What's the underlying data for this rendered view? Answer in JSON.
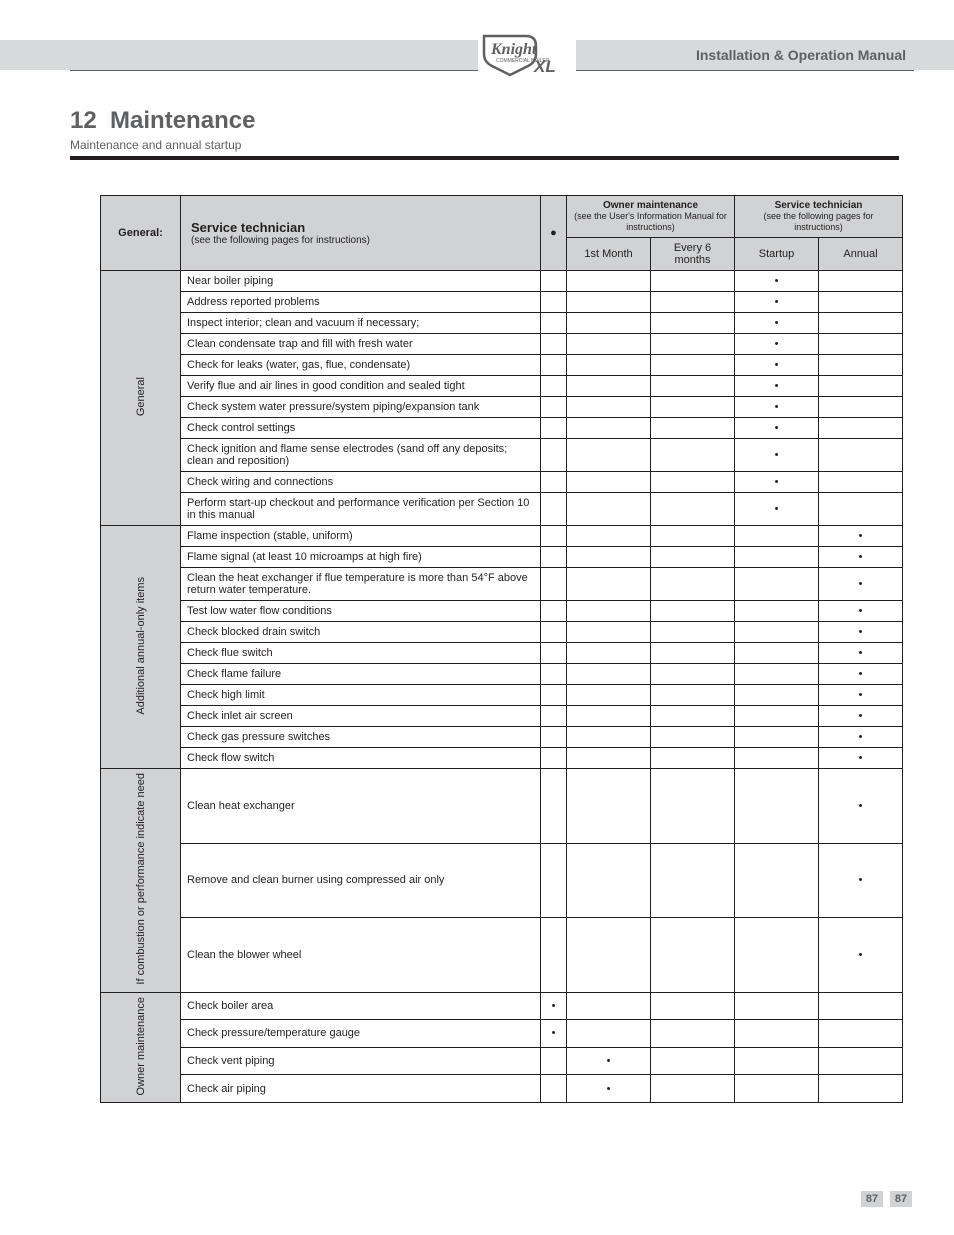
{
  "header": {
    "manual_title": "Installation & Operation Manual"
  },
  "section": {
    "number": "12",
    "title": "Maintenance",
    "subtitle": "Maintenance and annual startup"
  },
  "table": {
    "head": {
      "service_tech": "Service technician",
      "see_note": "(see the following pages for instructions)",
      "owner": "Owner maintenance",
      "see_om": "(see the  User's Information Manual for instructions)",
      "general": "General:",
      "dot_symbol": "●",
      "first_month": "1st Month",
      "every_6": "Every 6 months",
      "startup": "Startup",
      "annual": "Annual"
    },
    "groups": [
      {
        "label": "General",
        "rows": [
          {
            "proc": "Near boiler piping",
            "dot": "",
            "owner_a": "",
            "owner_b": "",
            "tech_a": "•",
            "tech_b": ""
          },
          {
            "proc": "Address reported problems",
            "dot": "",
            "owner_a": "",
            "owner_b": "",
            "tech_a": "•",
            "tech_b": ""
          },
          {
            "proc": "Inspect interior; clean and vacuum if necessary;",
            "dot": "",
            "owner_a": "",
            "owner_b": "",
            "tech_a": "•",
            "tech_b": ""
          },
          {
            "proc": "Clean condensate trap and fill with fresh water",
            "dot": "",
            "owner_a": "",
            "owner_b": "",
            "tech_a": "•",
            "tech_b": ""
          },
          {
            "proc": "Check for leaks (water, gas, flue, condensate)",
            "dot": "",
            "owner_a": "",
            "owner_b": "",
            "tech_a": "•",
            "tech_b": ""
          },
          {
            "proc": "Verify flue and air lines in good condition and sealed tight",
            "dot": "",
            "owner_a": "",
            "owner_b": "",
            "tech_a": "•",
            "tech_b": ""
          },
          {
            "proc": "Check system water pressure/system piping/expansion tank",
            "dot": "",
            "owner_a": "",
            "owner_b": "",
            "tech_a": "•",
            "tech_b": ""
          },
          {
            "proc": "Check control settings",
            "dot": "",
            "owner_a": "",
            "owner_b": "",
            "tech_a": "•",
            "tech_b": ""
          },
          {
            "proc": "Check ignition and flame sense electrodes (sand off any deposits; clean and reposition)",
            "dot": "",
            "owner_a": "",
            "owner_b": "",
            "tech_a": "•",
            "tech_b": ""
          },
          {
            "proc": "Check wiring and connections",
            "dot": "",
            "owner_a": "",
            "owner_b": "",
            "tech_a": "•",
            "tech_b": ""
          },
          {
            "proc": "Perform start-up checkout and performance verification per Section 10 in this manual",
            "dot": "",
            "owner_a": "",
            "owner_b": "",
            "tech_a": "•",
            "tech_b": ""
          }
        ]
      },
      {
        "label": "Additional annual-only items",
        "rows": [
          {
            "proc": "Flame inspection (stable, uniform)",
            "dot": "",
            "owner_a": "",
            "owner_b": "",
            "tech_a": "",
            "tech_b": "•"
          },
          {
            "proc": "Flame signal (at least 10 microamps at high fire)",
            "dot": "",
            "owner_a": "",
            "owner_b": "",
            "tech_a": "",
            "tech_b": "•"
          },
          {
            "proc": "Clean the heat exchanger if flue temperature is more than 54°F above return water temperature.",
            "dot": "",
            "owner_a": "",
            "owner_b": "",
            "tech_a": "",
            "tech_b": "•"
          },
          {
            "proc": "Test low water flow conditions",
            "dot": "",
            "owner_a": "",
            "owner_b": "",
            "tech_a": "",
            "tech_b": "•"
          },
          {
            "proc": "Check blocked drain switch",
            "dot": "",
            "owner_a": "",
            "owner_b": "",
            "tech_a": "",
            "tech_b": "•"
          },
          {
            "proc": "Check flue switch",
            "dot": "",
            "owner_a": "",
            "owner_b": "",
            "tech_a": "",
            "tech_b": "•"
          },
          {
            "proc": "Check flame failure",
            "dot": "",
            "owner_a": "",
            "owner_b": "",
            "tech_a": "",
            "tech_b": "•"
          },
          {
            "proc": "Check high limit",
            "dot": "",
            "owner_a": "",
            "owner_b": "",
            "tech_a": "",
            "tech_b": "•"
          },
          {
            "proc": "Check inlet air screen",
            "dot": "",
            "owner_a": "",
            "owner_b": "",
            "tech_a": "",
            "tech_b": "•"
          },
          {
            "proc": "Check gas pressure switches",
            "dot": "",
            "owner_a": "",
            "owner_b": "",
            "tech_a": "",
            "tech_b": "•"
          },
          {
            "proc": "Check flow switch",
            "dot": "",
            "owner_a": "",
            "owner_b": "",
            "tech_a": "",
            "tech_b": "•"
          }
        ]
      },
      {
        "label": "If combustion or performance indicate need",
        "rows": [
          {
            "proc": "Clean heat exchanger",
            "dot": "",
            "owner_a": "",
            "owner_b": "",
            "tech_a": "",
            "tech_b": "•"
          },
          {
            "proc": "Remove and clean burner using compressed air only",
            "dot": "",
            "owner_a": "",
            "owner_b": "",
            "tech_a": "",
            "tech_b": "•"
          },
          {
            "proc": "Clean the blower wheel",
            "dot": "",
            "owner_a": "",
            "owner_b": "",
            "tech_a": "",
            "tech_b": "•"
          }
        ]
      },
      {
        "label": "Owner maintenance",
        "rows": [
          {
            "proc": "Check boiler area",
            "dot": "•",
            "owner_a": "",
            "owner_b": "",
            "tech_a": "",
            "tech_b": ""
          },
          {
            "proc": "Check pressure/temperature gauge",
            "dot": "•",
            "owner_a": "",
            "owner_b": "",
            "tech_a": "",
            "tech_b": ""
          },
          {
            "proc": "Check vent piping",
            "dot": "",
            "owner_a": "•",
            "owner_b": "",
            "tech_a": "",
            "tech_b": ""
          },
          {
            "proc": "Check air piping",
            "dot": "",
            "owner_a": "•",
            "owner_b": "",
            "tech_a": "",
            "tech_b": ""
          }
        ]
      }
    ]
  },
  "footer": {
    "pg_l": "87",
    "pg_r": "87"
  }
}
